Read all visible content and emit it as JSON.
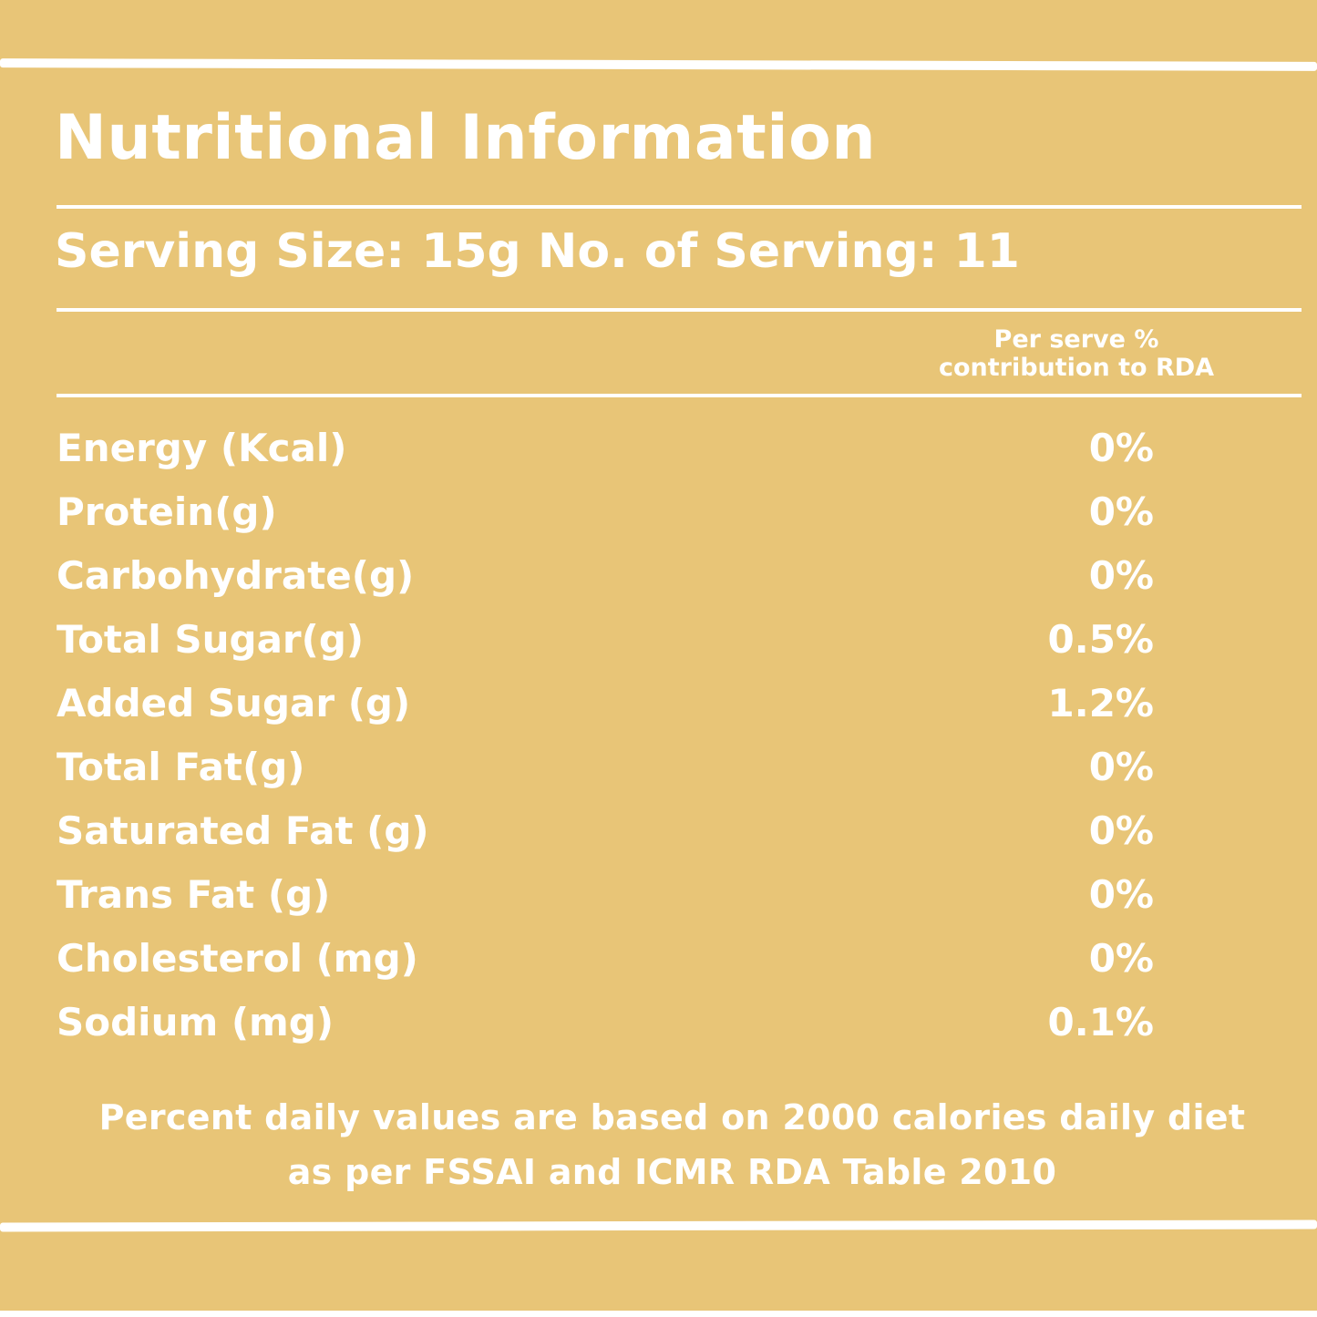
{
  "label": {
    "title": "Nutritional Information",
    "serving_line": "Serving Size: 15g No. of Serving: 11",
    "rda_header_line1": "Per serve %",
    "rda_header_line2": "contribution to RDA",
    "rows": [
      {
        "name": "Energy (Kcal)",
        "value": "0%"
      },
      {
        "name": "Protein(g)",
        "value": "0%"
      },
      {
        "name": "Carbohydrate(g)",
        "value": "0%"
      },
      {
        "name": "Total Sugar(g)",
        "value": "0.5%"
      },
      {
        "name": "Added Sugar (g)",
        "value": "1.2%"
      },
      {
        "name": "Total Fat(g)",
        "value": "0%"
      },
      {
        "name": "Saturated Fat (g)",
        "value": "0%"
      },
      {
        "name": "Trans Fat (g)",
        "value": "0%"
      },
      {
        "name": "Cholesterol (mg)",
        "value": "0%"
      },
      {
        "name": "Sodium (mg)",
        "value": "0.1%"
      }
    ],
    "footnote_line1": "Percent daily values are based on 2000 calories daily diet",
    "footnote_line2": "as per FSSAI and ICMR RDA Table 2010"
  },
  "colors": {
    "background": "#e8c577",
    "text": "#ffffff"
  }
}
